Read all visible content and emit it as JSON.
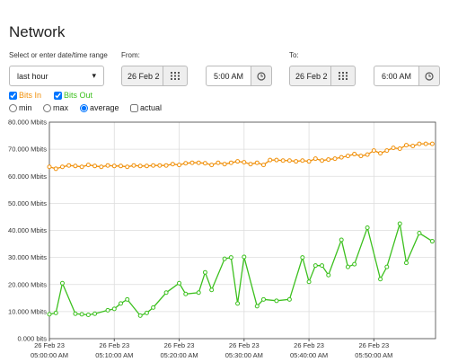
{
  "header": {
    "title": "Network"
  },
  "controls": {
    "range_label": "Select or enter date/time range",
    "range_select": "last hour",
    "from_label": "From:",
    "from_date": "26 Feb 2",
    "from_time": "5:00 AM",
    "to_label": "To:",
    "to_date": "26 Feb 2",
    "to_time": "6:00 AM",
    "modes": [
      "min",
      "max",
      "average",
      "actual"
    ]
  },
  "chart_data": {
    "type": "line",
    "grid": true,
    "xlim": [
      0,
      59.5
    ],
    "xticks": [
      {
        "value": 0,
        "label": "26 Feb 23\n05:00:00 AM"
      },
      {
        "value": 10,
        "label": "26 Feb 23\n05:10:00 AM"
      },
      {
        "value": 20,
        "label": "26 Feb 23\n05:20:00 AM"
      },
      {
        "value": 30,
        "label": "26 Feb 23\n05:30:00 AM"
      },
      {
        "value": 40,
        "label": "26 Feb 23\n05:40:00 AM"
      },
      {
        "value": 50,
        "label": "26 Feb 23\n05:50:00 AM"
      }
    ],
    "ylim": [
      0,
      80
    ],
    "yticks": [
      {
        "value": 0,
        "label": "0.000 bits"
      },
      {
        "value": 10,
        "label": "10.000 Mbits"
      },
      {
        "value": 20,
        "label": "20.000 Mbits"
      },
      {
        "value": 30,
        "label": "30.000 Mbits"
      },
      {
        "value": 40,
        "label": "40.000 Mbits"
      },
      {
        "value": 50,
        "label": "50.000 Mbits"
      },
      {
        "value": 60,
        "label": "60.000 Mbits"
      },
      {
        "value": 70,
        "label": "70.000 Mbits"
      },
      {
        "value": 80,
        "label": "80.000 Mbits"
      }
    ],
    "series": [
      {
        "name": "Bits In",
        "color": "#f0900a",
        "x": [
          0,
          1,
          2,
          3,
          4,
          5,
          6,
          7,
          8,
          9,
          10,
          11,
          12,
          13,
          14,
          15,
          16,
          17,
          18,
          19,
          20,
          21,
          22,
          23,
          24,
          25,
          26,
          27,
          28,
          29,
          30,
          31,
          32,
          33,
          34,
          35,
          36,
          37,
          38,
          39,
          40,
          41,
          42,
          43,
          44,
          45,
          46,
          47,
          48,
          49,
          50,
          51,
          52,
          53,
          54,
          55,
          56,
          57,
          58,
          59
        ],
        "values": [
          63.5,
          62.8,
          63.5,
          64,
          63.8,
          63.5,
          64.2,
          63.8,
          63.5,
          64,
          63.8,
          63.8,
          63.5,
          64,
          63.8,
          63.8,
          64,
          64,
          64,
          64.5,
          64.2,
          64.8,
          65,
          65,
          64.8,
          64.2,
          65,
          64.5,
          65,
          65.5,
          65.2,
          64.5,
          65,
          64.2,
          66,
          66,
          65.8,
          65.8,
          65.5,
          65.8,
          65.5,
          66.5,
          65.8,
          66.2,
          66.5,
          67,
          67.5,
          68.2,
          67.5,
          68,
          69.5,
          68.5,
          69.5,
          70.5,
          70.2,
          71.5,
          71.2,
          72,
          72,
          72
        ]
      },
      {
        "name": "Bits Out",
        "color": "#3cc01e",
        "x": [
          0,
          1,
          2,
          4,
          5,
          6,
          7,
          9,
          10,
          11,
          12,
          14,
          15,
          16,
          18,
          20,
          21,
          23,
          24,
          25,
          27,
          28,
          29,
          30,
          32,
          33,
          35,
          37,
          39,
          40,
          41,
          42,
          43,
          45,
          46,
          47,
          49,
          51,
          52,
          54,
          55,
          57,
          59
        ],
        "values": [
          9,
          9.5,
          20.5,
          9.2,
          9,
          8.8,
          9.2,
          10.5,
          11,
          13,
          14.5,
          8.5,
          9.5,
          11.5,
          17,
          20.5,
          16.5,
          17,
          24.5,
          18,
          29.5,
          30,
          13,
          30.2,
          12,
          14.5,
          14,
          14.5,
          30,
          21,
          27,
          27,
          23.5,
          36.5,
          26.5,
          27.5,
          41,
          22,
          26.5,
          42.5,
          28,
          39,
          36
        ]
      }
    ]
  }
}
